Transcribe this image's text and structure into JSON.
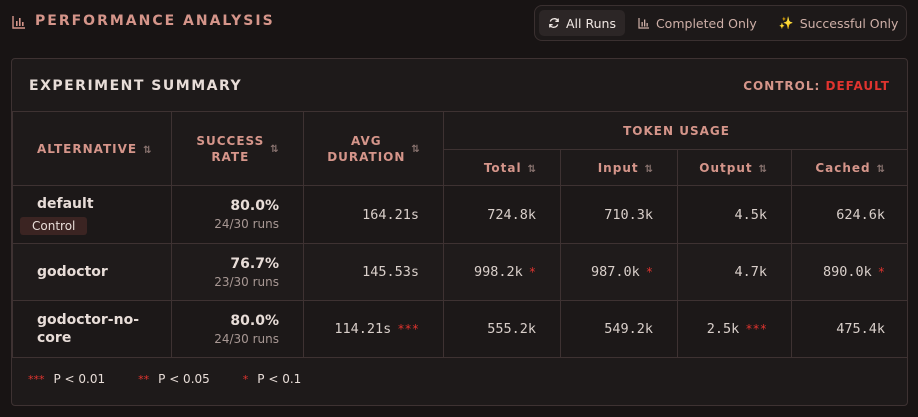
{
  "header": {
    "title": "PERFORMANCE ANALYSIS",
    "icon": "bar-chart-icon"
  },
  "filters": [
    {
      "label": "All Runs",
      "icon": "refresh-icon",
      "active": true
    },
    {
      "label": "Completed Only",
      "icon": "bar-chart-icon",
      "active": false
    },
    {
      "label": "Successful Only",
      "icon": "sparkles-icon",
      "active": false
    }
  ],
  "card": {
    "title": "EXPERIMENT SUMMARY",
    "control_label": "CONTROL:",
    "control_value": "DEFAULT"
  },
  "table": {
    "headers": {
      "alternative": "ALTERNATIVE",
      "success_rate_1": "SUCCESS",
      "success_rate_2": "RATE",
      "avg_duration_1": "AVG",
      "avg_duration_2": "DURATION",
      "token_usage": "TOKEN USAGE",
      "total": "Total",
      "input": "Input",
      "output": "Output",
      "cached": "Cached",
      "sort_icon": "⇅"
    },
    "rows": [
      {
        "name": "default",
        "badge": "Control",
        "rate": "80.0%",
        "runs": "24/30 runs",
        "duration": "164.21s",
        "duration_sig": "",
        "total": "724.8k",
        "total_sig": "",
        "input": "710.3k",
        "input_sig": "",
        "output": "4.5k",
        "output_sig": "",
        "cached": "624.6k",
        "cached_sig": ""
      },
      {
        "name": "godoctor",
        "badge": "",
        "rate": "76.7%",
        "runs": "23/30 runs",
        "duration": "145.53s",
        "duration_sig": "",
        "total": "998.2k",
        "total_sig": "*",
        "input": "987.0k",
        "input_sig": "*",
        "output": "4.7k",
        "output_sig": "",
        "cached": "890.0k",
        "cached_sig": "*"
      },
      {
        "name_line1": "godoctor-no-",
        "name_line2": "core",
        "badge": "",
        "rate": "80.0%",
        "runs": "24/30 runs",
        "duration": "114.21s",
        "duration_sig": "***",
        "total": "555.2k",
        "total_sig": "",
        "input": "549.2k",
        "input_sig": "",
        "output": "2.5k",
        "output_sig": "***",
        "cached": "475.4k",
        "cached_sig": ""
      }
    ]
  },
  "legend": [
    {
      "symbol": "***",
      "label": "P < 0.01"
    },
    {
      "symbol": "**",
      "label": "P < 0.05"
    },
    {
      "symbol": "*",
      "label": "P < 0.1"
    }
  ],
  "colors": {
    "accent": "#d5958a",
    "significance": "#e0342f",
    "background": "#181414"
  }
}
